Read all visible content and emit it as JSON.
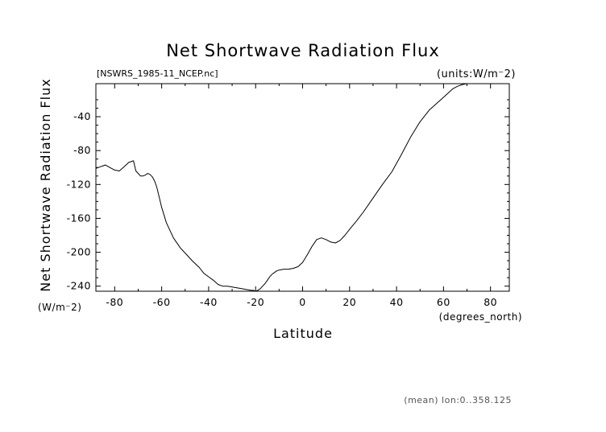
{
  "chart_data": {
    "type": "line",
    "title": "Net Shortwave Radiation Flux",
    "subtitle": "[NSWRS_1985-11_NCEP.nc]",
    "units_label": "(units:W/m⁻2)",
    "xlabel": "Latitude",
    "xunit": "(degrees_north)",
    "ylabel": "Net Shortwave Radiation Flux",
    "yunit": "(W/m⁻2)",
    "footnote": "(mean) lon:0..358.125",
    "xlim": [
      -88,
      88
    ],
    "ylim": [
      -246,
      -1
    ],
    "x_ticks": [
      -80,
      -60,
      -40,
      -20,
      0,
      20,
      40,
      60,
      80
    ],
    "y_ticks": [
      -240,
      -200,
      -160,
      -120,
      -80,
      -40
    ],
    "x_tick_labels": [
      "-80",
      "-60",
      "-40",
      "-20",
      "0",
      "20",
      "40",
      "60",
      "80"
    ],
    "y_tick_labels": [
      "-240",
      "-200",
      "-160",
      "-120",
      "-80",
      "-40"
    ],
    "grid": false,
    "line_color": "#000000",
    "series": [
      {
        "x": [
          -88,
          -86,
          -84,
          -82,
          -80,
          -78,
          -76,
          -74,
          -73,
          -72,
          -71,
          -70,
          -69,
          -68,
          -67,
          -66,
          -65,
          -64,
          -63,
          -62,
          -60,
          -58,
          -55,
          -52,
          -50,
          -47,
          -44,
          -42,
          -40,
          -38,
          -36,
          -34,
          -32,
          -30,
          -28,
          -26,
          -24,
          -22,
          -21,
          -20,
          -19,
          -18,
          -17,
          -16,
          -15,
          -14,
          -13,
          -12,
          -11,
          -10,
          -8,
          -6,
          -4,
          -2,
          0,
          2,
          4,
          6,
          8,
          10,
          12,
          14,
          16,
          18,
          20,
          23,
          26,
          30,
          34,
          38,
          42,
          46,
          50,
          54,
          58,
          62,
          64,
          66,
          68,
          70,
          72,
          74,
          76,
          78,
          80,
          82,
          84,
          86,
          88
        ],
        "y": [
          -101,
          -99,
          -97,
          -100,
          -103,
          -104,
          -99,
          -94,
          -93,
          -92,
          -104,
          -107,
          -110,
          -110,
          -109,
          -107,
          -108,
          -111,
          -116,
          -124,
          -147,
          -165,
          -183,
          -195,
          -201,
          -210,
          -218,
          -225,
          -229,
          -233,
          -238,
          -240,
          -240,
          -241,
          -242,
          -243,
          -244,
          -245,
          -245,
          -246,
          -245,
          -243,
          -240,
          -237,
          -233,
          -229,
          -226,
          -224,
          -222,
          -221,
          -220,
          -220,
          -219,
          -217,
          -212,
          -203,
          -193,
          -185,
          -183,
          -185,
          -188,
          -189,
          -186,
          -180,
          -173,
          -163,
          -152,
          -136,
          -120,
          -105,
          -85,
          -64,
          -46,
          -32,
          -22,
          -12,
          -7,
          -4,
          -2,
          -1,
          -1,
          -1,
          -1,
          -1,
          -1,
          -1,
          -1,
          -1,
          -1
        ]
      }
    ]
  }
}
